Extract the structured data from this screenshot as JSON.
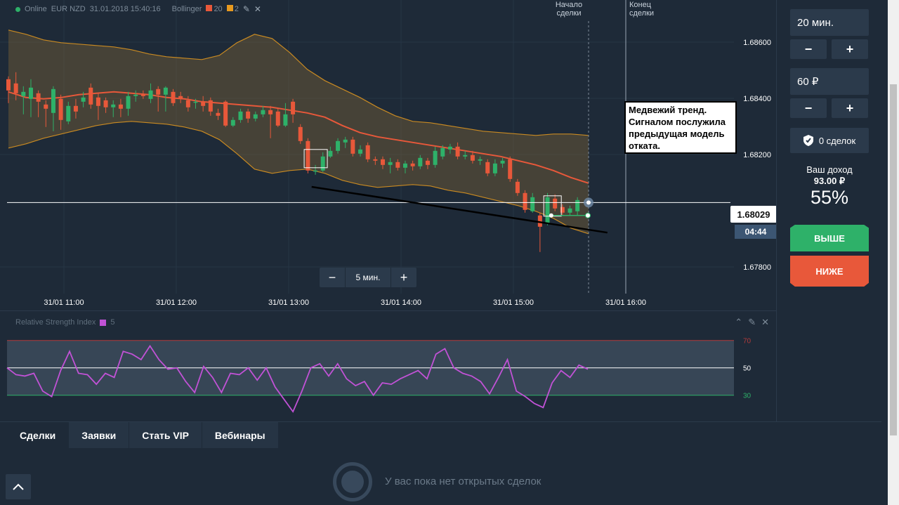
{
  "info_bar": {
    "status": "Online",
    "instrument": "EUR NZD",
    "datetime": "31.01.2018 15:40:16",
    "indicator": "Bollinger",
    "param1": "20",
    "param2": "2",
    "param1_color": "#e8583a",
    "param2_color": "#e89a1f"
  },
  "deal_markers": {
    "start": "Начало сделки",
    "end": "Конец сделки"
  },
  "annotation": "Медвежий тренд. Сигналом послужила предыдущая модель отката.",
  "current_price": "1.68029",
  "timer": "04:44",
  "zoom": {
    "value": "5 мин.",
    "minus": "−",
    "plus": "+"
  },
  "rsi": {
    "title": "Relative Strength Index",
    "period": "5",
    "color": "#c152d6"
  },
  "right_panel": {
    "time_value": "20 мин.",
    "amount_value": "60 ₽",
    "minus": "−",
    "plus": "+",
    "deals": "0 сделок",
    "income_label": "Ваш доход",
    "income_value": "93.00 ₽",
    "percent": "55%",
    "up_label": "ВЫШЕ",
    "down_label": "НИЖЕ",
    "up_color": "#2eb169",
    "down_color": "#e8583a"
  },
  "bottom": {
    "tabs": [
      "Сделки",
      "Заявки",
      "Стать VIP",
      "Вебинары"
    ],
    "empty_message": "У вас пока нет открытых сделок"
  },
  "chart_data": [
    {
      "type": "candlestick",
      "title": "",
      "x_ticks": [
        "31/01 11:00",
        "31/01 12:00",
        "31/01 13:00",
        "31/01 14:00",
        "31/01 15:00",
        "31/01 16:00"
      ],
      "y_ticks": [
        "1.68600",
        "1.68400",
        "1.68200",
        "1.67800"
      ],
      "ylim": [
        1.677,
        1.6873
      ],
      "candles": [
        {
          "o": 1.68468,
          "c": 1.68428,
          "h": 1.68478,
          "l": 1.68383
        },
        {
          "o": 1.68453,
          "c": 1.68418,
          "h": 1.68493,
          "l": 1.68393
        },
        {
          "o": 1.68408,
          "c": 1.68423,
          "h": 1.68443,
          "l": 1.68343
        },
        {
          "o": 1.68398,
          "c": 1.68438,
          "h": 1.68468,
          "l": 1.68333
        },
        {
          "o": 1.68418,
          "c": 1.68388,
          "h": 1.68428,
          "l": 1.68333
        },
        {
          "o": 1.68378,
          "c": 1.68363,
          "h": 1.68393,
          "l": 1.68298
        },
        {
          "o": 1.68348,
          "c": 1.68433,
          "h": 1.68443,
          "l": 1.68283
        },
        {
          "o": 1.68398,
          "c": 1.68323,
          "h": 1.68413,
          "l": 1.68288
        },
        {
          "o": 1.68318,
          "c": 1.68373,
          "h": 1.68388,
          "l": 1.68308
        },
        {
          "o": 1.68373,
          "c": 1.68353,
          "h": 1.68398,
          "l": 1.68328
        },
        {
          "o": 1.68388,
          "c": 1.68403,
          "h": 1.68423,
          "l": 1.68368
        },
        {
          "o": 1.68438,
          "c": 1.68378,
          "h": 1.68453,
          "l": 1.68363
        },
        {
          "o": 1.68403,
          "c": 1.68373,
          "h": 1.68418,
          "l": 1.68323
        },
        {
          "o": 1.68393,
          "c": 1.68368,
          "h": 1.68403,
          "l": 1.68348
        },
        {
          "o": 1.68368,
          "c": 1.68378,
          "h": 1.68393,
          "l": 1.68333
        },
        {
          "o": 1.68378,
          "c": 1.68363,
          "h": 1.68398,
          "l": 1.68333
        },
        {
          "o": 1.68363,
          "c": 1.68408,
          "h": 1.68423,
          "l": 1.68338
        },
        {
          "o": 1.68408,
          "c": 1.68413,
          "h": 1.68428,
          "l": 1.68388
        },
        {
          "o": 1.68413,
          "c": 1.68408,
          "h": 1.68428,
          "l": 1.68398
        },
        {
          "o": 1.68398,
          "c": 1.68428,
          "h": 1.68453,
          "l": 1.68383
        },
        {
          "o": 1.68433,
          "c": 1.68413,
          "h": 1.68443,
          "l": 1.68353
        },
        {
          "o": 1.68413,
          "c": 1.68438,
          "h": 1.68443,
          "l": 1.68353
        },
        {
          "o": 1.68423,
          "c": 1.68383,
          "h": 1.68433,
          "l": 1.68373
        },
        {
          "o": 1.68408,
          "c": 1.68398,
          "h": 1.68423,
          "l": 1.68383
        },
        {
          "o": 1.68393,
          "c": 1.68368,
          "h": 1.68408,
          "l": 1.68353
        },
        {
          "o": 1.68388,
          "c": 1.68388,
          "h": 1.68398,
          "l": 1.68363
        },
        {
          "o": 1.68388,
          "c": 1.68373,
          "h": 1.68408,
          "l": 1.68353
        },
        {
          "o": 1.68393,
          "c": 1.68353,
          "h": 1.68403,
          "l": 1.68338
        },
        {
          "o": 1.68348,
          "c": 1.68338,
          "h": 1.68363,
          "l": 1.68323
        },
        {
          "o": 1.68388,
          "c": 1.68303,
          "h": 1.68393,
          "l": 1.68298
        },
        {
          "o": 1.68303,
          "c": 1.68323,
          "h": 1.68333,
          "l": 1.68298
        },
        {
          "o": 1.68323,
          "c": 1.68353,
          "h": 1.68363,
          "l": 1.68313
        },
        {
          "o": 1.68353,
          "c": 1.68328,
          "h": 1.68363,
          "l": 1.68313
        },
        {
          "o": 1.68328,
          "c": 1.68343,
          "h": 1.68353,
          "l": 1.68318
        },
        {
          "o": 1.68343,
          "c": 1.68358,
          "h": 1.68373,
          "l": 1.68333
        },
        {
          "o": 1.68358,
          "c": 1.68343,
          "h": 1.68373,
          "l": 1.68258
        },
        {
          "o": 1.68353,
          "c": 1.68303,
          "h": 1.68363,
          "l": 1.68298
        },
        {
          "o": 1.68303,
          "c": 1.68343,
          "h": 1.68383,
          "l": 1.68298
        },
        {
          "o": 1.68388,
          "c": 1.68343,
          "h": 1.68398,
          "l": 1.68313
        },
        {
          "o": 1.68298,
          "c": 1.68248,
          "h": 1.68308,
          "l": 1.68238
        },
        {
          "o": 1.68248,
          "c": 1.68143,
          "h": 1.68258,
          "l": 1.68133
        },
        {
          "o": 1.68143,
          "c": 1.68143,
          "h": 1.68163,
          "l": 1.68128
        },
        {
          "o": 1.68143,
          "c": 1.68193,
          "h": 1.68208,
          "l": 1.68138
        },
        {
          "o": 1.68193,
          "c": 1.68213,
          "h": 1.68228,
          "l": 1.68188
        },
        {
          "o": 1.68213,
          "c": 1.68248,
          "h": 1.68258,
          "l": 1.68203
        },
        {
          "o": 1.68243,
          "c": 1.68253,
          "h": 1.68263,
          "l": 1.68223
        },
        {
          "o": 1.68253,
          "c": 1.68203,
          "h": 1.68263,
          "l": 1.68193
        },
        {
          "o": 1.68203,
          "c": 1.68218,
          "h": 1.68233,
          "l": 1.68193
        },
        {
          "o": 1.68233,
          "c": 1.68183,
          "h": 1.68243,
          "l": 1.68173
        },
        {
          "o": 1.68183,
          "c": 1.68178,
          "h": 1.68193,
          "l": 1.68163
        },
        {
          "o": 1.68183,
          "c": 1.68163,
          "h": 1.68193,
          "l": 1.68148
        },
        {
          "o": 1.68163,
          "c": 1.68173,
          "h": 1.68188,
          "l": 1.68133
        },
        {
          "o": 1.68173,
          "c": 1.68153,
          "h": 1.68183,
          "l": 1.68143
        },
        {
          "o": 1.68153,
          "c": 1.68168,
          "h": 1.68178,
          "l": 1.68133
        },
        {
          "o": 1.68168,
          "c": 1.68158,
          "h": 1.68178,
          "l": 1.68143
        },
        {
          "o": 1.68158,
          "c": 1.68188,
          "h": 1.68198,
          "l": 1.68148
        },
        {
          "o": 1.68178,
          "c": 1.68163,
          "h": 1.68188,
          "l": 1.68148
        },
        {
          "o": 1.68163,
          "c": 1.68213,
          "h": 1.68228,
          "l": 1.68153
        },
        {
          "o": 1.68193,
          "c": 1.68223,
          "h": 1.68233,
          "l": 1.68183
        },
        {
          "o": 1.68218,
          "c": 1.68228,
          "h": 1.68238,
          "l": 1.68203
        },
        {
          "o": 1.68228,
          "c": 1.68193,
          "h": 1.68243,
          "l": 1.68183
        },
        {
          "o": 1.68193,
          "c": 1.68198,
          "h": 1.68213,
          "l": 1.68183
        },
        {
          "o": 1.68198,
          "c": 1.68178,
          "h": 1.68213,
          "l": 1.68168
        },
        {
          "o": 1.68178,
          "c": 1.68183,
          "h": 1.68193,
          "l": 1.68163
        },
        {
          "o": 1.68173,
          "c": 1.68133,
          "h": 1.68183,
          "l": 1.68123
        },
        {
          "o": 1.68133,
          "c": 1.68168,
          "h": 1.68183,
          "l": 1.68123
        },
        {
          "o": 1.68168,
          "c": 1.68178,
          "h": 1.68188,
          "l": 1.68153
        },
        {
          "o": 1.68183,
          "c": 1.68113,
          "h": 1.68193,
          "l": 1.68103
        },
        {
          "o": 1.68103,
          "c": 1.68063,
          "h": 1.68113,
          "l": 1.68053
        },
        {
          "o": 1.68063,
          "c": 1.68003,
          "h": 1.68073,
          "l": 1.67993
        },
        {
          "o": 1.67998,
          "c": 1.68048,
          "h": 1.68063,
          "l": 1.67993
        },
        {
          "o": 1.67983,
          "c": 1.67943,
          "h": 1.67993,
          "l": 1.67853
        },
        {
          "o": 1.67953,
          "c": 1.68048,
          "h": 1.68063,
          "l": 1.67948
        },
        {
          "o": 1.68043,
          "c": 1.68008,
          "h": 1.68058,
          "l": 1.67998
        },
        {
          "o": 1.68013,
          "c": 1.67993,
          "h": 1.68023,
          "l": 1.67983
        },
        {
          "o": 1.67993,
          "c": 1.68008,
          "h": 1.68018,
          "l": 1.67983
        },
        {
          "o": 1.67998,
          "c": 1.68038,
          "h": 1.68048,
          "l": 1.67983
        }
      ],
      "bollinger": {
        "middle": [
          1.68423,
          1.68403,
          1.68398,
          1.68403,
          1.68413,
          1.68418,
          1.68423,
          1.68418,
          1.68413,
          1.68403,
          1.68398,
          1.68388,
          1.68383,
          1.68378,
          1.68373,
          1.68368,
          1.68358,
          1.68348,
          1.68333,
          1.68303,
          1.68278,
          1.68263,
          1.68253,
          1.68243,
          1.68233,
          1.68223,
          1.68213,
          1.68203,
          1.68193,
          1.68178,
          1.68163,
          1.68143,
          1.68118,
          1.68098
        ],
        "upper": [
          1.68643,
          1.68628,
          1.68608,
          1.68598,
          1.68593,
          1.68588,
          1.68583,
          1.68573,
          1.68558,
          1.68548,
          1.68543,
          1.68538,
          1.68553,
          1.68598,
          1.68628,
          1.68613,
          1.68563,
          1.68503,
          1.68463,
          1.68433,
          1.68403,
          1.68368,
          1.68338,
          1.68318,
          1.68313,
          1.68303,
          1.68293,
          1.68283,
          1.68278,
          1.68273,
          1.68268,
          1.68273,
          1.68273,
          1.68268
        ],
        "lower": [
          1.68223,
          1.68238,
          1.68258,
          1.68273,
          1.68288,
          1.68303,
          1.68313,
          1.68318,
          1.68313,
          1.68308,
          1.68298,
          1.68283,
          1.68253,
          1.68203,
          1.68148,
          1.68133,
          1.68143,
          1.68148,
          1.68133,
          1.68108,
          1.68093,
          1.68083,
          1.68088,
          1.68093,
          1.68088,
          1.68073,
          1.68063,
          1.68048,
          1.68033,
          1.68018,
          1.67998,
          1.67973,
          1.67938,
          1.67918
        ]
      },
      "current_price": 1.68029,
      "trend_line": [
        [
          1.68085,
          40.5
        ],
        [
          1.67922,
          80
        ]
      ]
    },
    {
      "type": "line",
      "title": "Relative Strength Index",
      "y_ticks": [
        "70",
        "50",
        "30"
      ],
      "ylim": [
        16,
        76
      ],
      "levels": [
        70,
        50,
        30
      ],
      "series": [
        {
          "name": "5",
          "values": [
            50,
            45,
            44,
            46,
            33,
            29,
            48,
            62,
            46,
            45,
            38,
            46,
            43,
            62,
            60,
            56,
            66,
            56,
            49,
            50,
            40,
            32,
            51,
            43,
            32,
            46,
            45,
            50,
            41,
            50,
            36,
            27,
            18,
            33,
            50,
            53,
            44,
            53,
            42,
            37,
            40,
            30,
            39,
            38,
            42,
            45,
            48,
            42,
            60,
            64,
            50,
            46,
            44,
            40,
            31,
            43,
            56,
            33,
            29,
            24,
            21,
            39,
            48,
            43,
            52,
            49
          ]
        }
      ]
    }
  ]
}
